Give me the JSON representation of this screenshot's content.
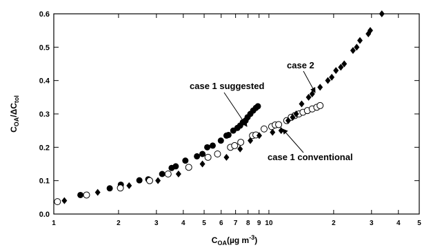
{
  "chart_data": {
    "type": "scatter",
    "log_x": true,
    "xlabel": [
      "C",
      "OA",
      "(µg m",
      "-3",
      ")"
    ],
    "ylabel": [
      "C",
      "OA",
      "/ΔC",
      "tol"
    ],
    "xlim": [
      1,
      50
    ],
    "ylim": [
      0,
      0.6
    ],
    "xticks": [
      1,
      2,
      3,
      4,
      5,
      6,
      7,
      8,
      9,
      10,
      {
        "value": 20,
        "label": "2"
      },
      {
        "value": 30,
        "label": "3"
      },
      {
        "value": 40,
        "label": "4"
      },
      {
        "value": 50,
        "label": "5"
      }
    ],
    "yticks": [
      {
        "value": 0,
        "label": "0.0"
      },
      0.1,
      0.2,
      0.3,
      0.4,
      0.5,
      0.6
    ],
    "series": [
      {
        "name": "case 1 suggested",
        "color": "#000000",
        "marker": "filled-circle",
        "x": [
          1.33,
          1.82,
          2.05,
          2.5,
          2.75,
          3.19,
          3.53,
          3.69,
          4.09,
          4.63,
          4.91,
          5.17,
          5.48,
          5.98,
          6.35,
          6.49,
          6.83,
          7.14,
          7.35,
          7.57,
          7.79,
          7.96,
          8.2,
          8.45,
          8.7,
          8.89
        ],
        "values": [
          0.057,
          0.077,
          0.088,
          0.101,
          0.104,
          0.12,
          0.138,
          0.143,
          0.16,
          0.173,
          0.18,
          0.2,
          0.205,
          0.22,
          0.235,
          0.237,
          0.25,
          0.258,
          0.265,
          0.275,
          0.28,
          0.29,
          0.3,
          0.31,
          0.318,
          0.323
        ]
      },
      {
        "name": "case 1 conventional",
        "color": "#000000",
        "marker": "open-circle",
        "x": [
          1.04,
          1.42,
          2.04,
          2.79,
          3.4,
          4.24,
          5.21,
          5.77,
          6.63,
          6.93,
          7.4,
          8.39,
          8.7,
          9.5,
          10.3,
          10.7,
          11.1,
          12.1,
          12.7,
          13.2,
          13.8,
          14.4,
          15.1,
          15.9,
          16.7,
          17.3
        ],
        "values": [
          0.037,
          0.057,
          0.078,
          0.1,
          0.12,
          0.14,
          0.17,
          0.18,
          0.2,
          0.205,
          0.215,
          0.235,
          0.237,
          0.255,
          0.262,
          0.267,
          0.268,
          0.28,
          0.29,
          0.295,
          0.3,
          0.305,
          0.31,
          0.315,
          0.32,
          0.325
        ]
      },
      {
        "name": "case 2",
        "color": "#000000",
        "marker": "diamond",
        "x": [
          1.12,
          1.6,
          2.24,
          3.05,
          3.8,
          4.91,
          6.35,
          7.35,
          8.2,
          9.02,
          10.4,
          11.4,
          12.3,
          12.9,
          13.4,
          14.2,
          15.3,
          15.9,
          17.3,
          18.8,
          19.6,
          20.5,
          21.6,
          22.4,
          24.6,
          25.6,
          26.5,
          29.0,
          29.6,
          33.5
        ],
        "values": [
          0.04,
          0.065,
          0.085,
          0.1,
          0.12,
          0.15,
          0.17,
          0.195,
          0.22,
          0.235,
          0.245,
          0.25,
          0.28,
          0.29,
          0.3,
          0.33,
          0.35,
          0.36,
          0.38,
          0.4,
          0.41,
          0.43,
          0.44,
          0.45,
          0.49,
          0.5,
          0.52,
          0.54,
          0.55,
          0.6
        ]
      }
    ]
  }
}
